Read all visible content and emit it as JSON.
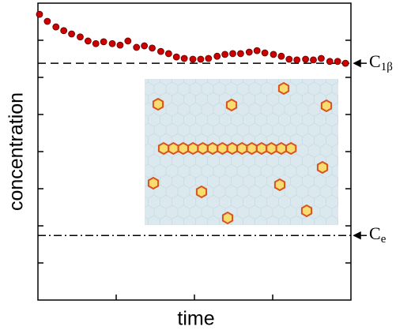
{
  "chart_data": {
    "type": "scatter",
    "x_label": "time",
    "y_label": "concentration",
    "xlim": [
      0,
      4
    ],
    "ylim": [
      0,
      8
    ],
    "xticks": [
      1,
      2,
      3
    ],
    "yticks": [
      1,
      2,
      3,
      4,
      5,
      6,
      7
    ],
    "series": [
      {
        "color": "#cc0000",
        "x": [
          0.02,
          0.12,
          0.23,
          0.33,
          0.43,
          0.54,
          0.64,
          0.74,
          0.84,
          0.95,
          1.05,
          1.15,
          1.26,
          1.36,
          1.46,
          1.57,
          1.67,
          1.77,
          1.87,
          1.98,
          2.08,
          2.18,
          2.29,
          2.39,
          2.49,
          2.59,
          2.7,
          2.8,
          2.9,
          3.01,
          3.11,
          3.21,
          3.31,
          3.42,
          3.52,
          3.62,
          3.73,
          3.83,
          3.93
        ],
        "values": [
          7.7,
          7.51,
          7.36,
          7.26,
          7.17,
          7.09,
          6.98,
          6.91,
          6.96,
          6.91,
          6.87,
          6.98,
          6.81,
          6.85,
          6.79,
          6.7,
          6.64,
          6.55,
          6.51,
          6.49,
          6.49,
          6.51,
          6.57,
          6.62,
          6.64,
          6.64,
          6.68,
          6.72,
          6.66,
          6.62,
          6.57,
          6.49,
          6.47,
          6.49,
          6.47,
          6.51,
          6.43,
          6.43,
          6.38
        ]
      }
    ],
    "ref_lines": [
      {
        "value": 6.38,
        "label": "C",
        "subscript": "1β",
        "style": "dashed"
      },
      {
        "value": 1.74,
        "label": "C",
        "subscript": "e",
        "style": "dashdot"
      }
    ]
  }
}
